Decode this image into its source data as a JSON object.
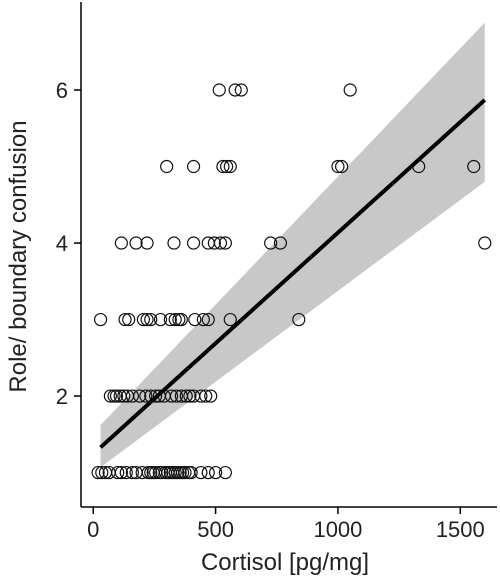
{
  "chart_data": {
    "type": "scatter",
    "title": "",
    "xlabel": "Cortisol [pg/mg]",
    "ylabel": "Role/ boundary confusion",
    "xlim": [
      -50,
      1650
    ],
    "ylim": [
      0.55,
      7.15
    ],
    "x_ticks": [
      0,
      500,
      1000,
      1500
    ],
    "y_ticks": [
      2,
      4,
      6
    ],
    "grid": false,
    "legend": "none",
    "colors": {
      "points_stroke": "#111111",
      "line": "#000000",
      "band": "#c8c8c8",
      "axis": "#000000"
    },
    "regression": {
      "x_start": 30,
      "x_end": 1600,
      "fit": [
        1.33,
        5.87
      ],
      "lower": [
        1.07,
        4.8
      ],
      "upper": [
        1.62,
        6.88
      ]
    },
    "points": [
      [
        20,
        1
      ],
      [
        35,
        1
      ],
      [
        50,
        1
      ],
      [
        65,
        1
      ],
      [
        100,
        1
      ],
      [
        115,
        1
      ],
      [
        135,
        1
      ],
      [
        160,
        1
      ],
      [
        175,
        1
      ],
      [
        200,
        1
      ],
      [
        225,
        1
      ],
      [
        235,
        1
      ],
      [
        245,
        1
      ],
      [
        255,
        1
      ],
      [
        270,
        1
      ],
      [
        280,
        1
      ],
      [
        295,
        1
      ],
      [
        305,
        1
      ],
      [
        315,
        1
      ],
      [
        325,
        1
      ],
      [
        335,
        1
      ],
      [
        345,
        1
      ],
      [
        355,
        1
      ],
      [
        365,
        1
      ],
      [
        375,
        1
      ],
      [
        390,
        1
      ],
      [
        400,
        1
      ],
      [
        440,
        1
      ],
      [
        470,
        1
      ],
      [
        500,
        1
      ],
      [
        540,
        1
      ],
      [
        70,
        2
      ],
      [
        85,
        2
      ],
      [
        95,
        2
      ],
      [
        110,
        2
      ],
      [
        125,
        2
      ],
      [
        140,
        2
      ],
      [
        160,
        2
      ],
      [
        190,
        2
      ],
      [
        215,
        2
      ],
      [
        235,
        2
      ],
      [
        255,
        2
      ],
      [
        270,
        2
      ],
      [
        290,
        2
      ],
      [
        320,
        2
      ],
      [
        340,
        2
      ],
      [
        360,
        2
      ],
      [
        380,
        2
      ],
      [
        395,
        2
      ],
      [
        410,
        2
      ],
      [
        440,
        2
      ],
      [
        460,
        2
      ],
      [
        480,
        2
      ],
      [
        30,
        3
      ],
      [
        130,
        3
      ],
      [
        145,
        3
      ],
      [
        205,
        3
      ],
      [
        220,
        3
      ],
      [
        235,
        3
      ],
      [
        275,
        3
      ],
      [
        315,
        3
      ],
      [
        335,
        3
      ],
      [
        350,
        3
      ],
      [
        360,
        3
      ],
      [
        415,
        3
      ],
      [
        450,
        3
      ],
      [
        470,
        3
      ],
      [
        560,
        3
      ],
      [
        840,
        3
      ],
      [
        115,
        4
      ],
      [
        175,
        4
      ],
      [
        220,
        4
      ],
      [
        330,
        4
      ],
      [
        410,
        4
      ],
      [
        470,
        4
      ],
      [
        495,
        4
      ],
      [
        520,
        4
      ],
      [
        540,
        4
      ],
      [
        725,
        4
      ],
      [
        765,
        4
      ],
      [
        1600,
        4
      ],
      [
        300,
        5
      ],
      [
        410,
        5
      ],
      [
        530,
        5
      ],
      [
        545,
        5
      ],
      [
        560,
        5
      ],
      [
        1000,
        5
      ],
      [
        1015,
        5
      ],
      [
        1330,
        5
      ],
      [
        1555,
        5
      ],
      [
        515,
        6
      ],
      [
        580,
        6
      ],
      [
        605,
        6
      ],
      [
        1050,
        6
      ]
    ]
  }
}
